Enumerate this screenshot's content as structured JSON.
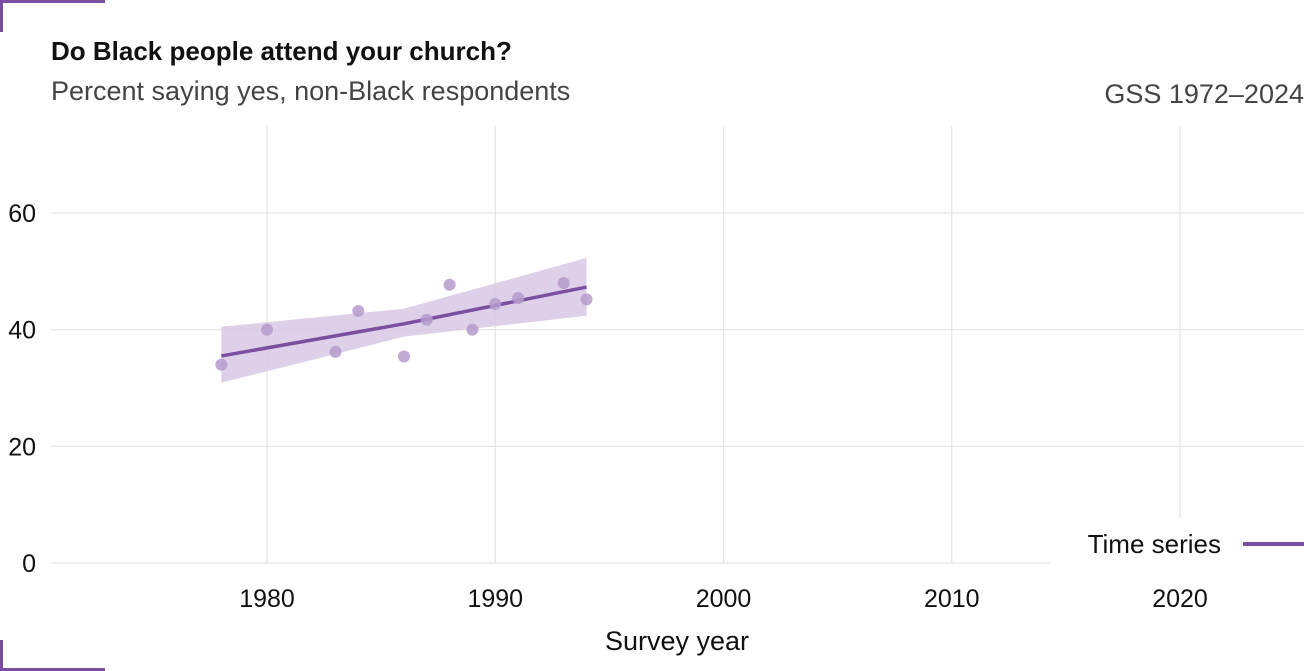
{
  "header": {
    "title": "Do Black people attend your church?",
    "subtitle": "Percent saying yes, non-Black respondents",
    "source": "GSS 1972–2024"
  },
  "colors": {
    "accent": "#7b4fa0",
    "points": "#b59bcc",
    "ribbon": "#d7c8e4",
    "grid": "#e4e4e4"
  },
  "chart_data": {
    "type": "scatter",
    "title": "Do Black people attend your church?",
    "subtitle": "Percent saying yes, non-Black respondents",
    "xlabel": "Survey year",
    "ylabel": "",
    "xlim": [
      1971,
      2024
    ],
    "ylim": [
      0,
      72
    ],
    "x_ticks": [
      1980,
      1990,
      2000,
      2010,
      2020
    ],
    "y_ticks": [
      0,
      20,
      40,
      60
    ],
    "grid": true,
    "points": [
      {
        "x": 1978,
        "y": 34.0
      },
      {
        "x": 1980,
        "y": 40.0
      },
      {
        "x": 1983,
        "y": 36.2
      },
      {
        "x": 1984,
        "y": 43.2
      },
      {
        "x": 1986,
        "y": 35.4
      },
      {
        "x": 1987,
        "y": 41.7
      },
      {
        "x": 1988,
        "y": 47.7
      },
      {
        "x": 1989,
        "y": 40.0
      },
      {
        "x": 1990,
        "y": 44.4
      },
      {
        "x": 1991,
        "y": 45.4
      },
      {
        "x": 1993,
        "y": 48.0
      },
      {
        "x": 1994,
        "y": 45.2
      }
    ],
    "trend": {
      "name": "Time series",
      "x": [
        1978,
        1986,
        1994
      ],
      "y": [
        35.5,
        41.0,
        47.3
      ],
      "lower": [
        30.9,
        38.8,
        42.4
      ],
      "upper": [
        40.5,
        43.6,
        52.3
      ]
    },
    "legend": {
      "label": "Time series",
      "position": "bottom-right"
    }
  }
}
